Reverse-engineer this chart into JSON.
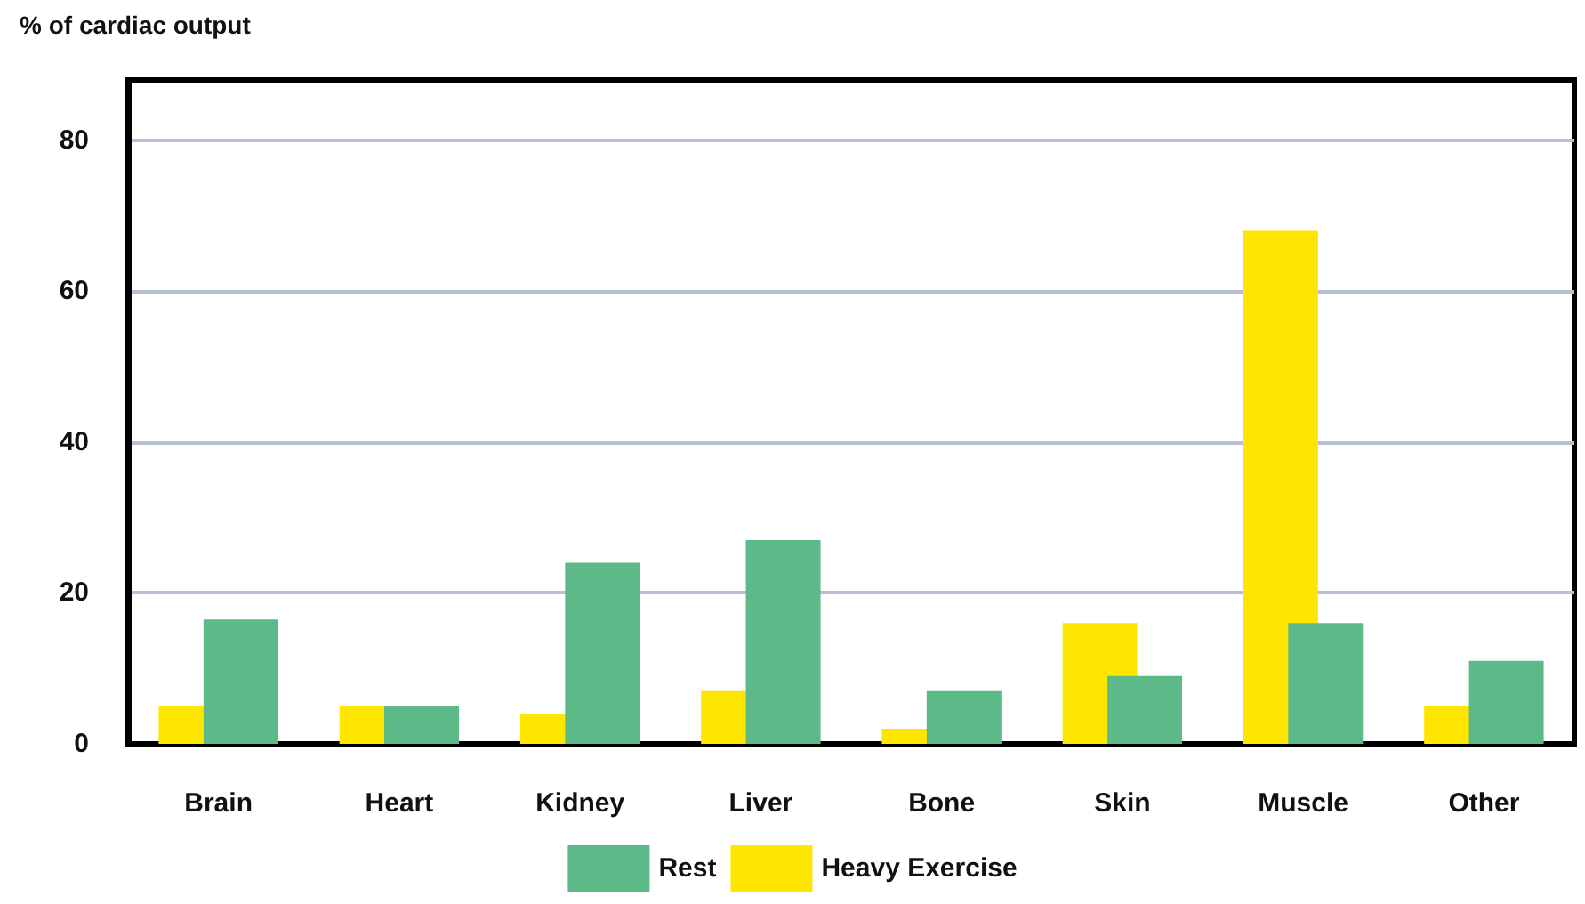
{
  "chart_data": {
    "type": "bar",
    "ylabel": "% of cardiac output",
    "categories": [
      "Brain",
      "Heart",
      "Kidney",
      "Liver",
      "Bone",
      "Skin",
      "Muscle",
      "Other"
    ],
    "series": [
      {
        "name": "Rest",
        "color": "#5cba88",
        "values": [
          16.5,
          5,
          24,
          27,
          7,
          9,
          16,
          11
        ]
      },
      {
        "name": "Heavy Exercise",
        "color": "#ffe600",
        "values": [
          5,
          5,
          4,
          7,
          2,
          16,
          68,
          5
        ]
      }
    ],
    "ylim": [
      0,
      88
    ],
    "yticks": [
      0,
      20,
      40,
      60,
      80
    ],
    "grid": "y",
    "legend": "bottom"
  }
}
